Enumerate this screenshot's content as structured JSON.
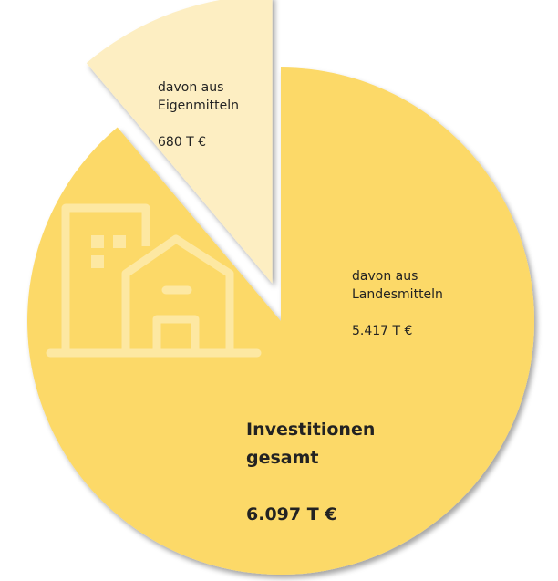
{
  "chart_data": {
    "type": "pie",
    "categories": [
      "davon aus\nLandesmitteln",
      "davon aus\nEigenmitteln"
    ],
    "values": [
      5417,
      680
    ],
    "value_labels": [
      "5.417 T €",
      "680 T €"
    ],
    "colors": [
      "#fcd968",
      "#fdeec2"
    ],
    "annotation": "Investitionen\ngesamt",
    "total": 6097,
    "total_label": "6.097 T €"
  }
}
